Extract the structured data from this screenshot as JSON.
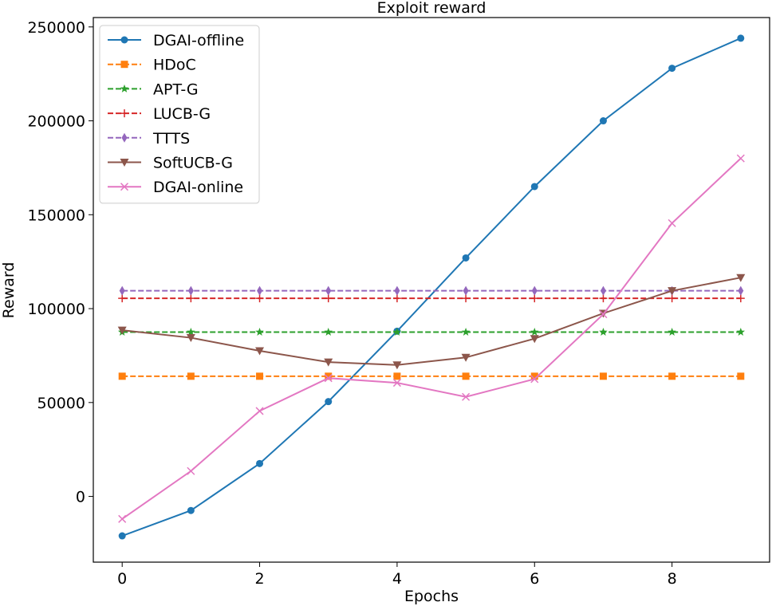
{
  "chart_data": {
    "type": "line",
    "title": "Exploit reward",
    "xlabel": "Epochs",
    "ylabel": "Reward",
    "xlim": [
      -0.42,
      9.42
    ],
    "ylim": [
      -35000,
      255000
    ],
    "xticks": [
      0,
      2,
      4,
      6,
      8
    ],
    "yticks": [
      0,
      50000,
      100000,
      150000,
      200000,
      250000
    ],
    "grid": false,
    "legend_position": "top-left",
    "x": [
      0,
      1,
      2,
      3,
      4,
      5,
      6,
      7,
      8,
      9
    ],
    "series": [
      {
        "name": "DGAI-offline",
        "color": "#1f77b4",
        "linestyle": "solid",
        "marker": "circle",
        "values": [
          -21000,
          -7500,
          17500,
          50500,
          88000,
          127000,
          165000,
          200000,
          228000,
          244000
        ]
      },
      {
        "name": "HDoC",
        "color": "#ff7f0e",
        "linestyle": "dashed",
        "marker": "square",
        "values": [
          64000,
          64000,
          64000,
          64000,
          64000,
          64000,
          64000,
          64000,
          64000,
          64000
        ]
      },
      {
        "name": "APT-G",
        "color": "#2ca02c",
        "linestyle": "dashed",
        "marker": "star",
        "values": [
          87500,
          87500,
          87500,
          87500,
          87500,
          87500,
          87500,
          87500,
          87500,
          87500
        ]
      },
      {
        "name": "LUCB-G",
        "color": "#d62728",
        "linestyle": "dashed",
        "marker": "plus",
        "values": [
          105500,
          105500,
          105500,
          105500,
          105500,
          105500,
          105500,
          105500,
          105500,
          105500
        ]
      },
      {
        "name": "TTTS",
        "color": "#9467bd",
        "linestyle": "dashed",
        "marker": "thin-diamond",
        "values": [
          109500,
          109500,
          109500,
          109500,
          109500,
          109500,
          109500,
          109500,
          109500,
          109500
        ]
      },
      {
        "name": "SoftUCB-G",
        "color": "#8c564b",
        "linestyle": "solid",
        "marker": "triangle-down",
        "values": [
          88500,
          84500,
          77500,
          71500,
          70000,
          74000,
          84000,
          97500,
          109500,
          116500
        ]
      },
      {
        "name": "DGAI-online",
        "color": "#e377c2",
        "linestyle": "solid",
        "marker": "x",
        "values": [
          -12000,
          13500,
          45500,
          63000,
          60500,
          53000,
          62500,
          97000,
          145500,
          180000
        ]
      }
    ]
  }
}
